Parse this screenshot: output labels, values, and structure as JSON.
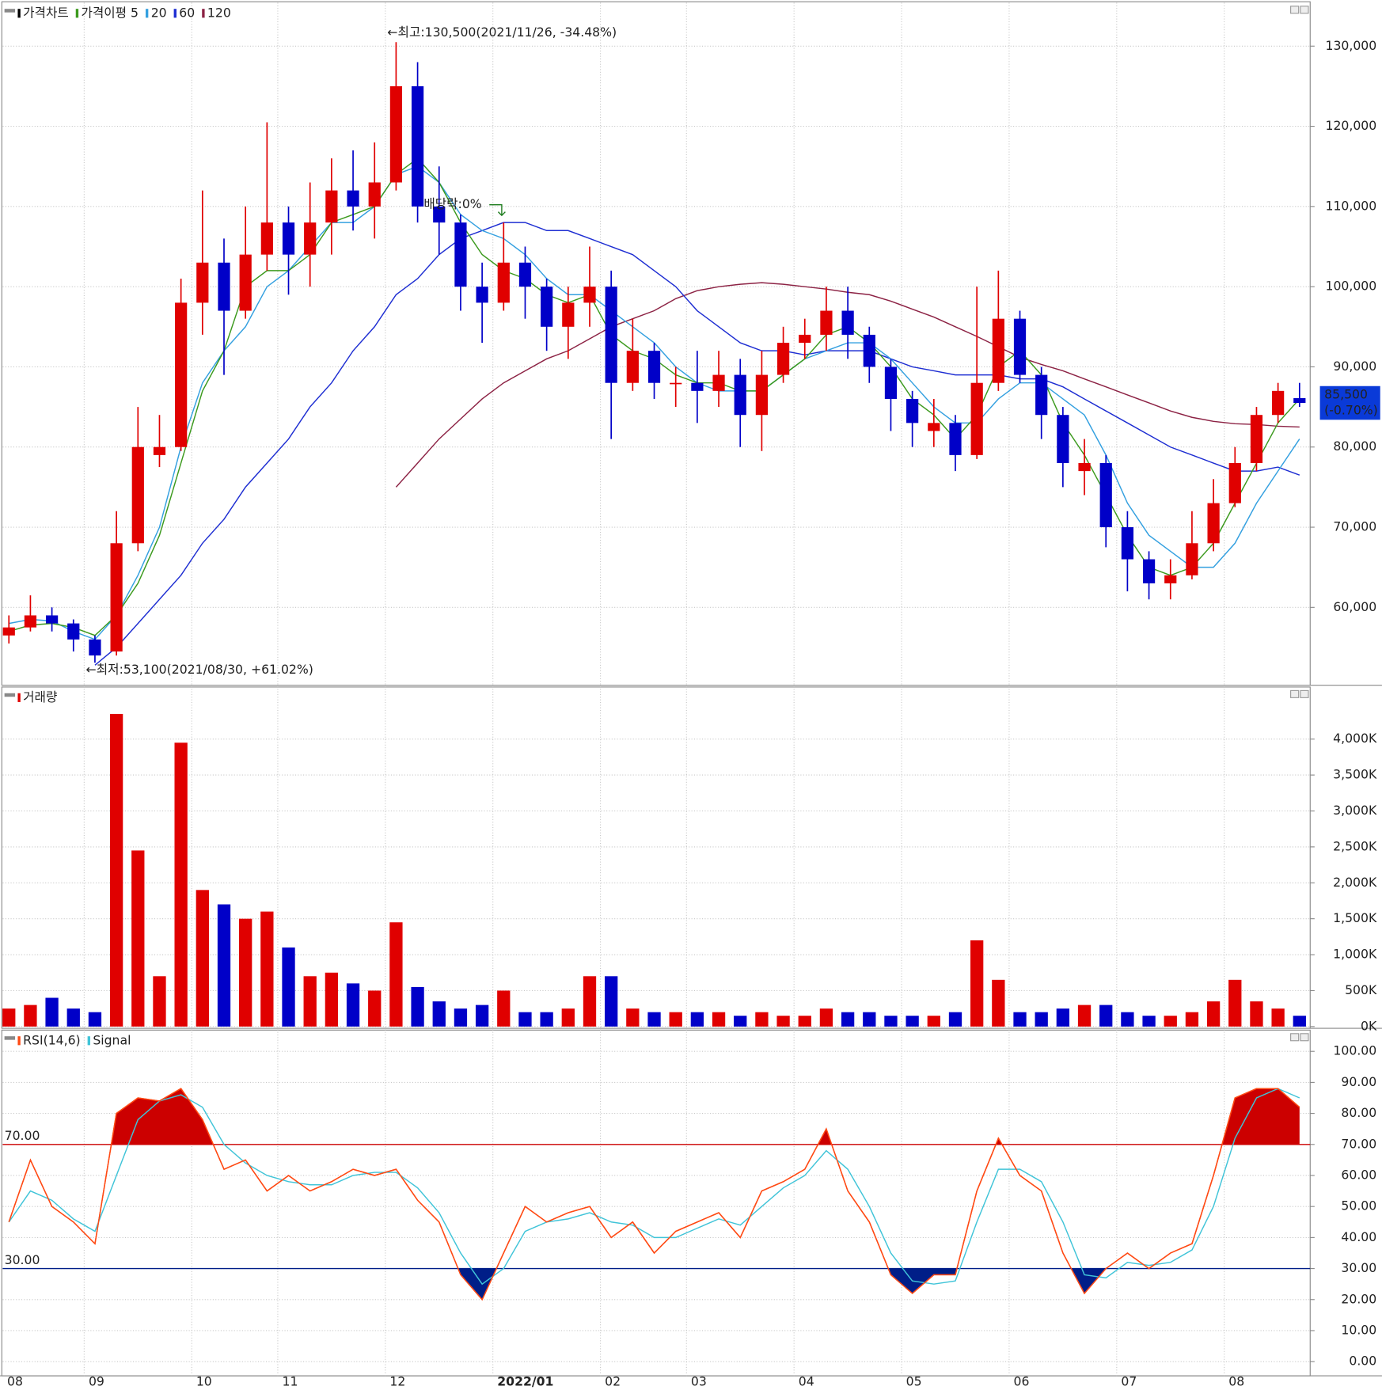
{
  "chart_data": [
    {
      "type": "candlestick",
      "categories": [
        "08",
        null,
        null,
        null,
        "09",
        null,
        null,
        null,
        null,
        "10",
        null,
        null,
        null,
        "11",
        null,
        null,
        null,
        null,
        "12",
        null,
        null,
        null,
        null,
        "2022/01",
        null,
        null,
        null,
        null,
        "02",
        null,
        null,
        null,
        "03",
        null,
        null,
        null,
        null,
        "04",
        null,
        null,
        null,
        null,
        "05",
        null,
        null,
        null,
        null,
        "06",
        null,
        null,
        null,
        null,
        "07",
        null,
        null,
        null,
        null,
        "08",
        null,
        null,
        null
      ],
      "series": [
        {
          "name": "가격차트",
          "color": "#000000",
          "up_color": "#e00000",
          "down_color": "#0000c8",
          "open": [
            56500,
            57500,
            59000,
            58000,
            56000,
            54500,
            68000,
            79000,
            80000,
            98000,
            103000,
            97000,
            104000,
            108000,
            104000,
            108000,
            112000,
            110000,
            113000,
            125000,
            110000,
            108000,
            100000,
            98000,
            103000,
            100000,
            95000,
            98000,
            100000,
            88000,
            92000,
            88000,
            88000,
            87000,
            89000,
            84000,
            89000,
            93000,
            94000,
            97000,
            94000,
            90000,
            86000,
            82000,
            83000,
            79000,
            88000,
            96000,
            89000,
            84000,
            77000,
            78000,
            70000,
            66000,
            63000,
            64000,
            68000,
            73000,
            78000,
            84000,
            86100
          ],
          "high": [
            59000,
            61500,
            60000,
            58500,
            56500,
            72000,
            85000,
            84000,
            101000,
            112000,
            106000,
            110000,
            120500,
            110000,
            113000,
            116000,
            117000,
            118000,
            130500,
            128000,
            115000,
            109000,
            103000,
            108000,
            105000,
            101000,
            100000,
            105000,
            102000,
            96000,
            93000,
            90000,
            92000,
            92000,
            91000,
            92000,
            95000,
            96000,
            100000,
            100000,
            95000,
            91000,
            87000,
            86000,
            84000,
            100000,
            102000,
            97000,
            90000,
            85000,
            81000,
            79000,
            72000,
            67000,
            66000,
            72000,
            76000,
            80000,
            85000,
            88000,
            88000
          ],
          "low": [
            55500,
            57000,
            57000,
            54500,
            53100,
            54000,
            67000,
            77500,
            79500,
            94000,
            89000,
            96000,
            102000,
            99000,
            100000,
            104000,
            107000,
            106000,
            112000,
            108000,
            104000,
            97000,
            93000,
            97000,
            96000,
            92000,
            91000,
            95000,
            81000,
            87000,
            86000,
            85000,
            83000,
            85000,
            80000,
            79500,
            88000,
            91000,
            92000,
            91000,
            88000,
            82000,
            80000,
            80000,
            77000,
            78500,
            87000,
            88000,
            81000,
            75000,
            74000,
            67500,
            62000,
            61000,
            61000,
            63500,
            67000,
            72500,
            77000,
            83000,
            85000
          ],
          "close": [
            57500,
            59000,
            58000,
            56000,
            54000,
            68000,
            80000,
            80000,
            98000,
            103000,
            97000,
            104000,
            108000,
            104000,
            108000,
            112000,
            110000,
            113000,
            125000,
            110000,
            108000,
            100000,
            98000,
            103000,
            100000,
            95000,
            98000,
            100000,
            88000,
            92000,
            88000,
            88000,
            87000,
            89000,
            84000,
            89000,
            93000,
            94000,
            97000,
            94000,
            90000,
            86000,
            83000,
            83000,
            79000,
            88000,
            96000,
            89000,
            84000,
            78000,
            78000,
            70000,
            66000,
            63000,
            64000,
            68000,
            73000,
            78000,
            84000,
            87000,
            85500
          ]
        },
        {
          "name": "가격이평 5",
          "color": "#3c9a1e",
          "values": [
            57000,
            57800,
            58000,
            57500,
            56500,
            59000,
            63000,
            69000,
            78000,
            87000,
            92000,
            100000,
            102000,
            102000,
            104000,
            108000,
            109000,
            110000,
            114000,
            116000,
            113000,
            108000,
            104000,
            102000,
            101000,
            99000,
            98000,
            99000,
            94000,
            92000,
            91000,
            89000,
            88000,
            88000,
            87000,
            87000,
            89000,
            91000,
            94000,
            95000,
            93000,
            90000,
            86000,
            84000,
            81000,
            84000,
            90000,
            92000,
            89000,
            83000,
            79000,
            74000,
            69000,
            65000,
            64000,
            65000,
            68000,
            73000,
            78000,
            83000,
            86000
          ]
        },
        {
          "name": "20",
          "color": "#34a0e0",
          "values": [
            58000,
            58500,
            58300,
            57000,
            56000,
            59000,
            64000,
            70000,
            80000,
            88000,
            92000,
            95000,
            100000,
            102000,
            105000,
            108000,
            108000,
            110000,
            114000,
            115000,
            113000,
            109000,
            107000,
            106000,
            104000,
            101000,
            99000,
            99000,
            97000,
            95000,
            93000,
            90000,
            88000,
            87000,
            87000,
            87000,
            89000,
            91000,
            92000,
            93000,
            93000,
            91000,
            88000,
            85000,
            83000,
            83000,
            86000,
            88000,
            88000,
            86000,
            84000,
            79000,
            73000,
            69000,
            67000,
            65000,
            65000,
            68000,
            73000,
            77000,
            81000
          ]
        },
        {
          "name": "60",
          "color": "#1e2ed2",
          "values": [
            null,
            null,
            null,
            null,
            52800,
            55000,
            58000,
            61000,
            64000,
            68000,
            71000,
            75000,
            78000,
            81000,
            85000,
            88000,
            92000,
            95000,
            99000,
            101000,
            104000,
            106000,
            107000,
            108000,
            108000,
            107000,
            107000,
            106000,
            105000,
            104000,
            102000,
            100000,
            97000,
            95000,
            93000,
            92000,
            92000,
            91500,
            92000,
            92000,
            92000,
            91000,
            90000,
            89500,
            89000,
            89000,
            89000,
            88500,
            88500,
            87500,
            86000,
            84500,
            83000,
            81500,
            80000,
            79000,
            78000,
            77000,
            77000,
            77500,
            76500
          ]
        },
        {
          "name": "120",
          "color": "#8c2244",
          "values": [
            null,
            null,
            null,
            null,
            null,
            null,
            null,
            null,
            null,
            null,
            null,
            null,
            null,
            null,
            null,
            null,
            null,
            null,
            75000,
            78000,
            81000,
            83500,
            86000,
            88000,
            89500,
            91000,
            92000,
            93500,
            95000,
            96000,
            97000,
            98500,
            99500,
            100000,
            100300,
            100500,
            100300,
            100000,
            99700,
            99300,
            99000,
            98200,
            97200,
            96200,
            95000,
            93800,
            92500,
            91200,
            90300,
            89500,
            88500,
            87500,
            86500,
            85500,
            84500,
            83700,
            83200,
            82900,
            82800,
            82600,
            82500
          ]
        }
      ],
      "ylim": [
        50400,
        135200
      ],
      "yticks": [
        {
          "value": 60000,
          "label": "60,000"
        },
        {
          "value": 70000,
          "label": "70,000"
        },
        {
          "value": 80000,
          "label": "80,000"
        },
        {
          "value": 90000,
          "label": "90,000"
        },
        {
          "value": 100000,
          "label": "100,000"
        },
        {
          "value": 110000,
          "label": "110,000"
        },
        {
          "value": 120000,
          "label": "120,000"
        },
        {
          "value": 130000,
          "label": "130,000"
        }
      ],
      "grid": true,
      "high_annotation": "←최고:130,500(2021/11/26, -34.48%)",
      "low_annotation": "←최저:53,100(2021/08/30, +61.02%)",
      "dividend_annotation": "배당락:0%",
      "last_price": "85,500",
      "last_change": "(-0.70%)",
      "last_price_color": "#0a3ad8"
    },
    {
      "type": "bar",
      "series": [
        {
          "name": "거래량",
          "color": "#e00000",
          "values": [
            250,
            300,
            400,
            250,
            200,
            4350,
            2450,
            700,
            3950,
            1900,
            1700,
            1500,
            1600,
            1100,
            700,
            750,
            600,
            500,
            1450,
            550,
            350,
            250,
            300,
            500,
            200,
            200,
            250,
            700,
            700,
            250,
            200,
            200,
            200,
            200,
            150,
            200,
            150,
            150,
            250,
            200,
            200,
            150,
            150,
            150,
            200,
            1200,
            650,
            200,
            200,
            250,
            300,
            300,
            200,
            150,
            150,
            200,
            350,
            650,
            350,
            250,
            150
          ]
        }
      ],
      "up_color": "#e00000",
      "down_color": "#0000c8",
      "ylim": [
        0,
        4700
      ],
      "yticks": [
        {
          "value": 0,
          "label": "0K"
        },
        {
          "value": 500,
          "label": "500K"
        },
        {
          "value": 1000,
          "label": "1,000K"
        },
        {
          "value": 1500,
          "label": "1,500K"
        },
        {
          "value": 2000,
          "label": "2,000K"
        },
        {
          "value": 2500,
          "label": "2,500K"
        },
        {
          "value": 3000,
          "label": "3,000K"
        },
        {
          "value": 3500,
          "label": "3,500K"
        },
        {
          "value": 4000,
          "label": "4,000K"
        }
      ],
      "grid": true
    },
    {
      "type": "line",
      "series": [
        {
          "name": "RSI(14,6)",
          "color": "#ff4a14",
          "values": [
            45,
            65,
            50,
            45,
            38,
            80,
            85,
            84,
            88,
            78,
            62,
            65,
            55,
            60,
            55,
            58,
            62,
            60,
            62,
            52,
            45,
            28,
            20,
            35,
            50,
            45,
            48,
            50,
            40,
            45,
            35,
            42,
            45,
            48,
            40,
            55,
            58,
            62,
            75,
            55,
            45,
            28,
            22,
            28,
            28,
            55,
            72,
            60,
            55,
            35,
            22,
            30,
            35,
            30,
            35,
            38,
            60,
            85,
            88,
            88,
            82
          ]
        },
        {
          "name": "Signal",
          "color": "#40c4d8",
          "values": [
            45,
            55,
            52,
            46,
            42,
            60,
            78,
            84,
            86,
            82,
            70,
            64,
            60,
            58,
            57,
            57,
            60,
            61,
            61,
            56,
            48,
            35,
            25,
            30,
            42,
            45,
            46,
            48,
            45,
            44,
            40,
            40,
            43,
            46,
            44,
            50,
            56,
            60,
            68,
            62,
            50,
            35,
            26,
            25,
            26,
            45,
            62,
            62,
            58,
            45,
            28,
            27,
            32,
            31,
            32,
            36,
            50,
            72,
            85,
            88,
            85
          ]
        }
      ],
      "ylim": [
        -4,
        106
      ],
      "yticks": [
        {
          "value": 0,
          "label": "0.00"
        },
        {
          "value": 10,
          "label": "10.00"
        },
        {
          "value": 20,
          "label": "20.00"
        },
        {
          "value": 30,
          "label": "30.00"
        },
        {
          "value": 40,
          "label": "40.00"
        },
        {
          "value": 50,
          "label": "50.00"
        },
        {
          "value": 60,
          "label": "60.00"
        },
        {
          "value": 70,
          "label": "70.00"
        },
        {
          "value": 80,
          "label": "80.00"
        },
        {
          "value": 90,
          "label": "90.00"
        },
        {
          "value": 100,
          "label": "100.00"
        }
      ],
      "overbought": {
        "value": 70,
        "label": "70.00",
        "color": "#cc0000"
      },
      "oversold": {
        "value": 30,
        "label": "30.00",
        "color": "#001e88"
      },
      "grid": true
    }
  ]
}
